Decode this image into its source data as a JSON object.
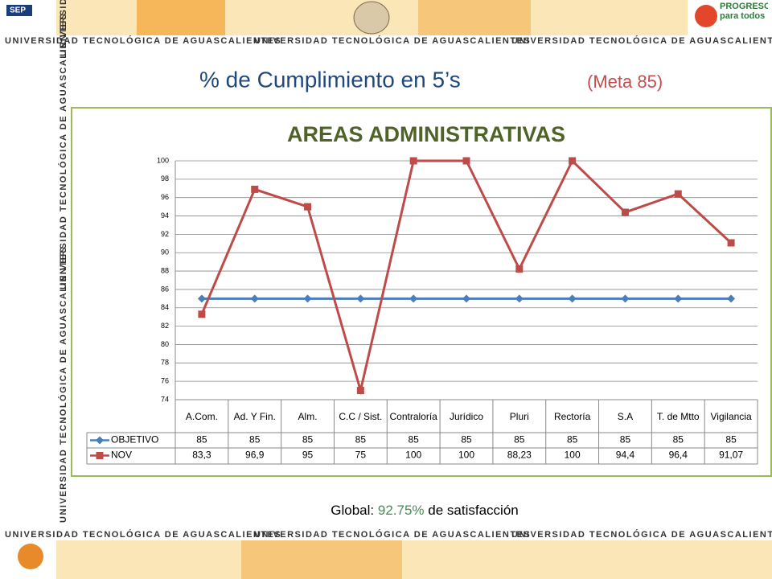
{
  "header": {
    "banner": "UNIVERSIDAD TECNOLÓGICA DE AGUASCALIENTES",
    "logo_left": "SEP",
    "logo_right": "PROGRESO para todos"
  },
  "slide": {
    "title": "% de Cumplimiento en 5’s",
    "goal": "(Meta 85)",
    "footer_prefix": "Global:",
    "footer_value": "92.75%",
    "footer_suffix": "de satisfacción"
  },
  "chart_data": {
    "type": "line",
    "title": "AREAS ADMINISTRATIVAS",
    "categories": [
      "A.Com.",
      "Ad. Y Fin.",
      "Alm.",
      "C.C / Sist.",
      "Contraloría",
      "Jurídico",
      "Pluri",
      "Rectoría",
      "S.A",
      "T. de Mtto",
      "Vigilancia"
    ],
    "series": [
      {
        "name": "OBJETIVO",
        "color": "#4a7ebb",
        "marker": "diamond",
        "values": [
          85,
          85,
          85,
          85,
          85,
          85,
          85,
          85,
          85,
          85,
          85
        ]
      },
      {
        "name": "NOV",
        "color": "#be4b48",
        "marker": "square",
        "values": [
          83.3,
          96.9,
          95,
          75,
          100,
          100,
          88.23,
          100,
          94.4,
          96.4,
          91.07
        ],
        "value_labels": [
          "83,3",
          "96,9",
          "95",
          "75",
          "100",
          "100",
          "88,23",
          "100",
          "94,4",
          "96,4",
          "91,07"
        ]
      }
    ],
    "ylim": [
      74,
      100
    ],
    "yticks": [
      74,
      76,
      78,
      80,
      82,
      84,
      86,
      88,
      90,
      92,
      94,
      96,
      98,
      100
    ],
    "grid": true,
    "data_table": true
  }
}
